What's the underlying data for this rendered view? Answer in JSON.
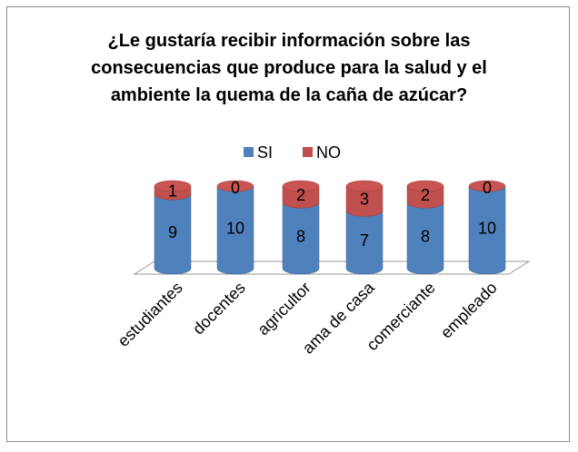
{
  "chart_data": {
    "type": "stacked-cylinder",
    "title": "¿Le gustaría recibir información sobre las consecuencias que produce para la salud y el ambiente la quema de la caña de azúcar?",
    "categories": [
      "estudiantes",
      "docentes",
      "agricultor",
      "ama de casa",
      "comerciante",
      "empleado"
    ],
    "series": [
      {
        "name": "SI",
        "color": "#4f81bd",
        "values": [
          9,
          10,
          8,
          7,
          8,
          10
        ]
      },
      {
        "name": "NO",
        "color": "#c0504d",
        "values": [
          1,
          0,
          2,
          3,
          2,
          0
        ]
      }
    ]
  }
}
